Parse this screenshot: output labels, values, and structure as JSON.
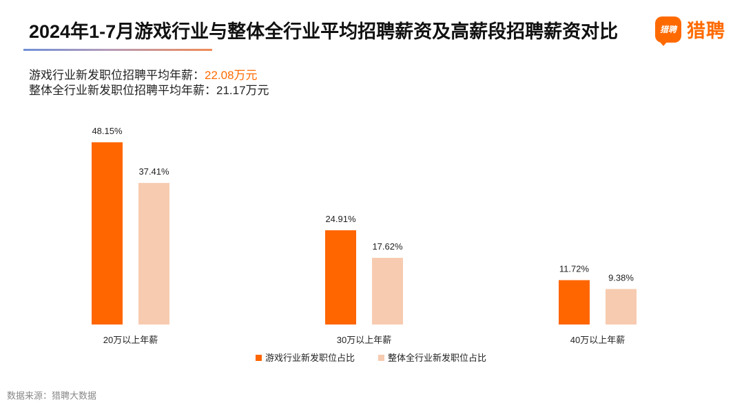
{
  "header": {
    "title": "2024年1-7月游戏行业与整体全行业平均招聘薪资及高薪段招聘薪资对比",
    "logo_badge": "猎聘",
    "logo_text": "猎聘",
    "accent_color": "#ff6a00"
  },
  "summary": {
    "line1_label": "游戏行业新发职位招聘平均年薪：",
    "line1_value": "22.08万元",
    "line2_label": "整体全行业新发职位招聘平均年薪：",
    "line2_value": "21.17万元"
  },
  "chart_data": {
    "type": "bar",
    "categories": [
      "20万以上年薪",
      "30万以上年薪",
      "40万以上年薪"
    ],
    "series": [
      {
        "name": "游戏行业新发职位占比",
        "values": [
          48.15,
          24.91,
          11.72
        ],
        "labels": [
          "48.15%",
          "24.91%",
          "11.72%"
        ],
        "color": "#ff6600"
      },
      {
        "name": "整体全行业新发职位占比",
        "values": [
          37.41,
          17.62,
          9.38
        ],
        "labels": [
          "37.41%",
          "17.62%",
          "9.38%"
        ],
        "color": "#f7cbb0"
      }
    ],
    "ylim": [
      0,
      48.15
    ],
    "grid": false,
    "legend_position": "bottom"
  },
  "footer": {
    "source": "数据来源：猎聘大数据"
  }
}
